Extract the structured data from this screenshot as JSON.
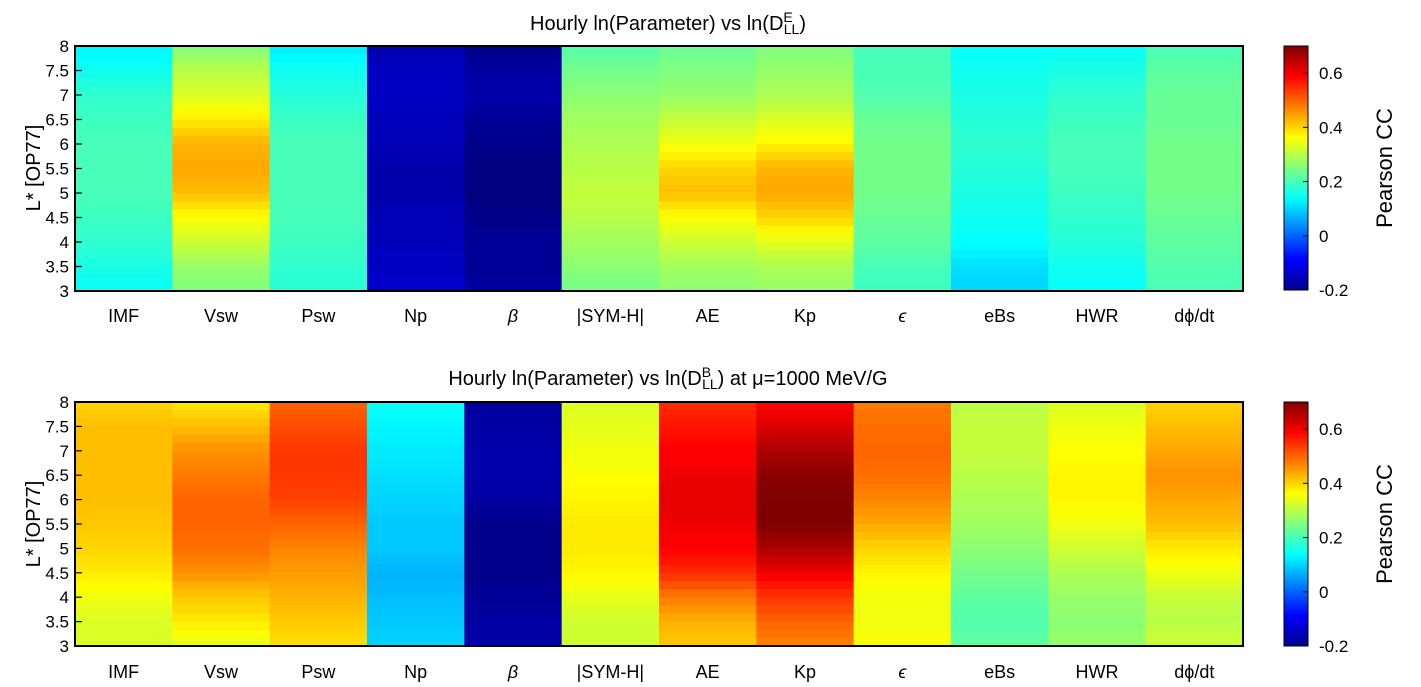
{
  "chart_data": [
    {
      "type": "heatmap",
      "title": {
        "main": "Hourly ln(Parameter) vs ln(D",
        "sup": "E",
        "sub": "LL",
        "tail": ")"
      },
      "ylabel": "L* [OP77]",
      "colorbar_label": "Pearson CC",
      "clim": [
        -0.2,
        0.7
      ],
      "colorbar_ticks": [
        "0.6",
        "0.4",
        "0.2",
        "0",
        "-0.2"
      ],
      "colorbar_tick_values": [
        0.6,
        0.4,
        0.2,
        0,
        -0.2
      ],
      "colormap": "jet",
      "ylim": [
        3,
        8
      ],
      "y_ticks": [
        "8",
        "7.5",
        "7",
        "6.5",
        "6",
        "5.5",
        "5",
        "4.5",
        "4",
        "3.5",
        "3"
      ],
      "y_tick_values": [
        8,
        7.5,
        7,
        6.5,
        6,
        5.5,
        5,
        4.5,
        4,
        3.5,
        3
      ],
      "columns": [
        "IMF",
        "Vsw",
        "Psw",
        "Np",
        "β",
        "|SYM-H|",
        "AE",
        "Kp",
        "ϵ",
        "eBs",
        "HWR",
        "dϕ/dt"
      ],
      "y_levels": [
        8.0,
        7.5,
        7.0,
        6.5,
        6.0,
        5.5,
        5.0,
        4.5,
        4.0,
        3.5,
        3.0
      ],
      "values": [
        [
          0.13,
          0.25,
          0.12,
          -0.16,
          -0.19,
          0.21,
          0.23,
          0.25,
          0.2,
          0.14,
          0.14,
          0.2
        ],
        [
          0.15,
          0.3,
          0.15,
          -0.14,
          -0.17,
          0.24,
          0.25,
          0.27,
          0.2,
          0.15,
          0.16,
          0.22
        ],
        [
          0.18,
          0.33,
          0.17,
          -0.14,
          -0.16,
          0.26,
          0.27,
          0.29,
          0.21,
          0.16,
          0.18,
          0.23
        ],
        [
          0.19,
          0.38,
          0.19,
          -0.15,
          -0.18,
          0.28,
          0.31,
          0.33,
          0.23,
          0.17,
          0.19,
          0.23
        ],
        [
          0.2,
          0.43,
          0.2,
          -0.15,
          -0.19,
          0.29,
          0.35,
          0.37,
          0.24,
          0.18,
          0.2,
          0.24
        ],
        [
          0.2,
          0.44,
          0.2,
          -0.16,
          -0.2,
          0.3,
          0.4,
          0.43,
          0.24,
          0.17,
          0.2,
          0.24
        ],
        [
          0.2,
          0.42,
          0.2,
          -0.16,
          -0.2,
          0.31,
          0.42,
          0.44,
          0.24,
          0.16,
          0.19,
          0.24
        ],
        [
          0.19,
          0.36,
          0.2,
          -0.15,
          -0.19,
          0.3,
          0.36,
          0.4,
          0.23,
          0.15,
          0.18,
          0.23
        ],
        [
          0.18,
          0.32,
          0.19,
          -0.15,
          -0.18,
          0.28,
          0.32,
          0.34,
          0.22,
          0.14,
          0.17,
          0.22
        ],
        [
          0.16,
          0.27,
          0.18,
          -0.14,
          -0.18,
          0.26,
          0.28,
          0.29,
          0.2,
          0.11,
          0.15,
          0.21
        ],
        [
          0.14,
          0.25,
          0.17,
          -0.13,
          -0.17,
          0.24,
          0.26,
          0.27,
          0.19,
          0.1,
          0.14,
          0.2
        ]
      ]
    },
    {
      "type": "heatmap",
      "title": {
        "main": "Hourly ln(Parameter) vs ln(D",
        "sup": "B",
        "sub": "LL",
        "tail": ") at μ=1000 MeV/G"
      },
      "ylabel": "L* [OP77]",
      "colorbar_label": "Pearson CC",
      "clim": [
        -0.2,
        0.7
      ],
      "colorbar_ticks": [
        "0.6",
        "0.4",
        "0.2",
        "0",
        "-0.2"
      ],
      "colorbar_tick_values": [
        0.6,
        0.4,
        0.2,
        0,
        -0.2
      ],
      "colormap": "jet",
      "ylim": [
        3,
        8
      ],
      "y_ticks": [
        "8",
        "7.5",
        "7",
        "6.5",
        "6",
        "5.5",
        "5",
        "4.5",
        "4",
        "3.5",
        "3"
      ],
      "y_tick_values": [
        8,
        7.5,
        7,
        6.5,
        6,
        5.5,
        5,
        4.5,
        4,
        3.5,
        3
      ],
      "columns": [
        "IMF",
        "Vsw",
        "Psw",
        "Np",
        "β",
        "|SYM-H|",
        "AE",
        "Kp",
        "ϵ",
        "eBs",
        "HWR",
        "dϕ/dt"
      ],
      "y_levels": [
        8.0,
        7.5,
        7.0,
        6.5,
        6.0,
        5.5,
        5.0,
        4.5,
        4.0,
        3.5,
        3.0
      ],
      "values": [
        [
          0.4,
          0.38,
          0.5,
          0.15,
          -0.17,
          0.33,
          0.55,
          0.58,
          0.48,
          0.3,
          0.33,
          0.4
        ],
        [
          0.42,
          0.42,
          0.52,
          0.13,
          -0.17,
          0.34,
          0.57,
          0.62,
          0.49,
          0.31,
          0.35,
          0.42
        ],
        [
          0.42,
          0.46,
          0.54,
          0.12,
          -0.16,
          0.35,
          0.59,
          0.66,
          0.5,
          0.31,
          0.36,
          0.44
        ],
        [
          0.42,
          0.48,
          0.54,
          0.11,
          -0.16,
          0.36,
          0.6,
          0.69,
          0.49,
          0.3,
          0.37,
          0.46
        ],
        [
          0.42,
          0.5,
          0.53,
          0.1,
          -0.17,
          0.37,
          0.61,
          0.7,
          0.47,
          0.29,
          0.37,
          0.44
        ],
        [
          0.41,
          0.5,
          0.5,
          0.09,
          -0.19,
          0.38,
          0.6,
          0.7,
          0.44,
          0.28,
          0.35,
          0.42
        ],
        [
          0.4,
          0.49,
          0.47,
          0.09,
          -0.19,
          0.38,
          0.59,
          0.66,
          0.4,
          0.26,
          0.32,
          0.38
        ],
        [
          0.38,
          0.46,
          0.45,
          0.07,
          -0.19,
          0.37,
          0.55,
          0.6,
          0.37,
          0.24,
          0.29,
          0.35
        ],
        [
          0.35,
          0.41,
          0.43,
          0.08,
          -0.18,
          0.34,
          0.48,
          0.54,
          0.35,
          0.22,
          0.27,
          0.31
        ],
        [
          0.33,
          0.38,
          0.41,
          0.09,
          -0.17,
          0.32,
          0.43,
          0.5,
          0.35,
          0.21,
          0.26,
          0.3
        ],
        [
          0.33,
          0.34,
          0.39,
          0.1,
          -0.16,
          0.32,
          0.41,
          0.47,
          0.36,
          0.22,
          0.27,
          0.32
        ]
      ]
    }
  ]
}
